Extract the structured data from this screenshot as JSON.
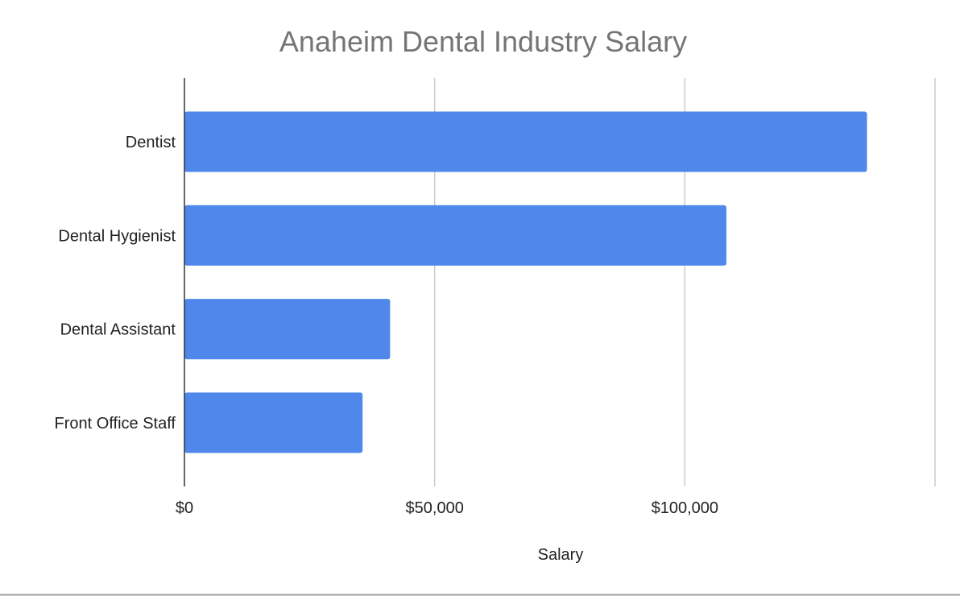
{
  "chart_data": {
    "type": "bar",
    "orientation": "horizontal",
    "title": "Anaheim Dental Industry Salary",
    "xlabel": "Salary",
    "ylabel": "",
    "categories": [
      "Dentist",
      "Dental Hygienist",
      "Dental Assistant",
      "Front Office Staff"
    ],
    "values": [
      136400,
      108300,
      41100,
      35600
    ],
    "xlim": [
      0,
      150000
    ],
    "xticks": [
      0,
      50000,
      100000,
      150000
    ],
    "xtick_labels": [
      "$0",
      "$50,000",
      "$100,000",
      ""
    ],
    "grid": true,
    "legend": "none",
    "colors": {
      "bar": "#4f87ea",
      "grid": "#cccccc",
      "axis": "#333333",
      "title": "#757575"
    }
  }
}
